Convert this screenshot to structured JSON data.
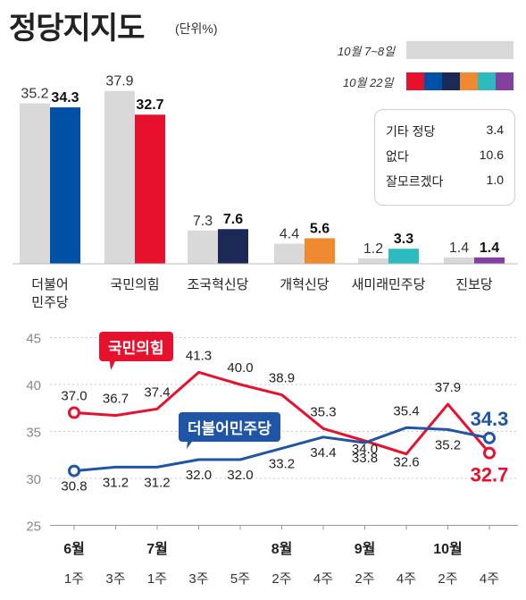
{
  "header": {
    "title": "정당지지도",
    "unit": "(단위%)"
  },
  "legend": {
    "prev_label": "10월 7~8일",
    "curr_label": "10월 22일",
    "prev_color": "#d9d9d9",
    "curr_colors": [
      "#e8112d",
      "#0050a5",
      "#1c2855",
      "#f08a30",
      "#2cbcbf",
      "#8340a0"
    ]
  },
  "others": [
    {
      "label": "기타 정당",
      "value": "3.4"
    },
    {
      "label": "없다",
      "value": "10.6"
    },
    {
      "label": "잘모르겠다",
      "value": "1.0"
    }
  ],
  "chart_data": [
    {
      "type": "bar",
      "categories": [
        "더불어\n민주당",
        "국민의힘",
        "조국혁신당",
        "개혁신당",
        "새미래민주당",
        "진보당"
      ],
      "series": [
        {
          "name": "10월 7~8일",
          "values": [
            35.2,
            37.9,
            7.3,
            4.4,
            1.2,
            1.4
          ]
        },
        {
          "name": "10월 22일",
          "values": [
            34.3,
            32.7,
            7.6,
            5.6,
            3.3,
            1.4
          ]
        }
      ],
      "colors": {
        "prev": "#d9d9d9",
        "curr": [
          "#0050a5",
          "#e8112d",
          "#1c2855",
          "#f08a30",
          "#2cbcbf",
          "#8340a0"
        ]
      }
    },
    {
      "type": "line",
      "x": [
        {
          "month": "6월",
          "week": "1주"
        },
        {
          "month": "",
          "week": "3주"
        },
        {
          "month": "7월",
          "week": "1주"
        },
        {
          "month": "",
          "week": "3주"
        },
        {
          "month": "",
          "week": "5주"
        },
        {
          "month": "8월",
          "week": "2주"
        },
        {
          "month": "",
          "week": "4주"
        },
        {
          "month": "9월",
          "week": "2주"
        },
        {
          "month": "",
          "week": "4주"
        },
        {
          "month": "10월",
          "week": "2주"
        },
        {
          "month": "",
          "week": "4주"
        }
      ],
      "series": [
        {
          "name": "국민의힘",
          "color": "#e8112d",
          "values": [
            37.0,
            36.7,
            37.4,
            41.3,
            40.0,
            38.9,
            35.3,
            34.0,
            32.6,
            37.9,
            32.7
          ]
        },
        {
          "name": "더불어민주당",
          "color": "#1f54a6",
          "values": [
            30.8,
            31.2,
            31.2,
            32.0,
            32.0,
            33.2,
            34.4,
            33.8,
            35.4,
            35.2,
            34.3
          ]
        }
      ],
      "ylim": [
        25,
        45
      ],
      "yticks": [
        25,
        30,
        35,
        40,
        45
      ],
      "grid": true
    }
  ]
}
